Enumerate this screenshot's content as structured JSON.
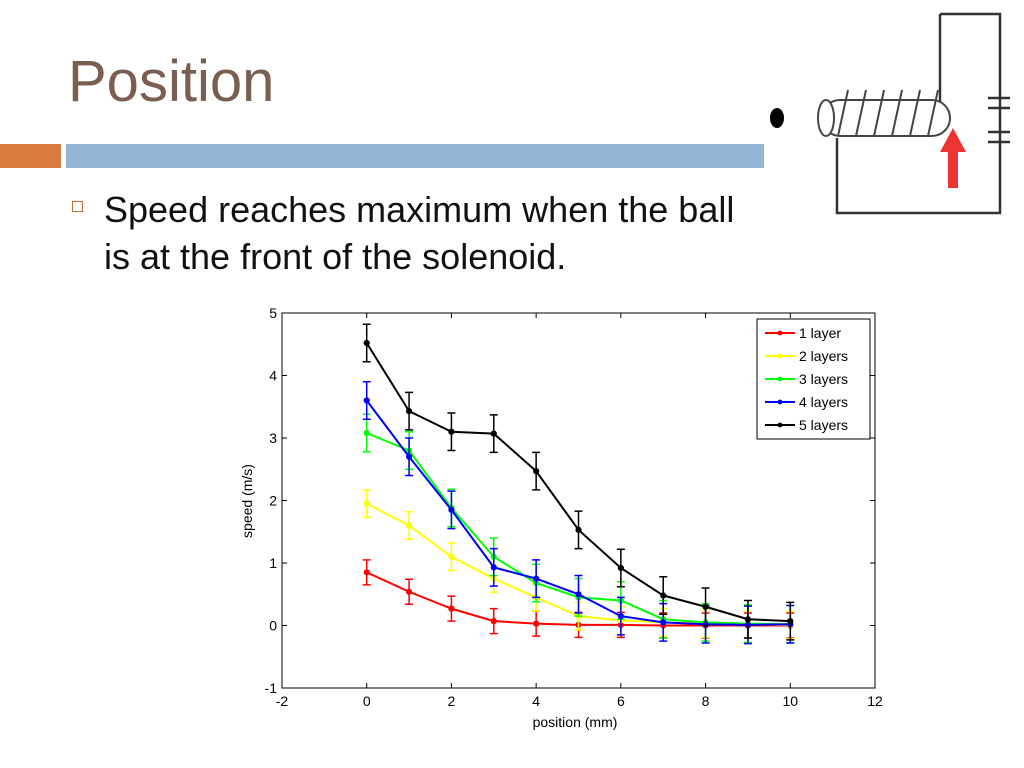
{
  "slide": {
    "title": "Position",
    "bullet": "Speed reaches maximum when the ball is at the front of the solenoid."
  },
  "colors": {
    "title": "#7a5e50",
    "accent_orange": "#d97b3c",
    "accent_blue": "#93b6d4",
    "arrow": "#ee3333"
  },
  "chart_data": {
    "type": "line",
    "title": "",
    "xlabel": "position (mm)",
    "ylabel": "speed (m/s)",
    "xlim": [
      -2,
      12
    ],
    "ylim": [
      -1,
      5
    ],
    "xticks": [
      -2,
      0,
      2,
      4,
      6,
      8,
      10,
      12
    ],
    "yticks": [
      -1,
      0,
      1,
      2,
      3,
      4,
      5
    ],
    "legend_position": "top-right",
    "grid": false,
    "x": [
      0,
      1,
      2,
      3,
      4,
      5,
      6,
      7,
      8,
      9,
      10
    ],
    "series": [
      {
        "name": "1 layer",
        "color": "#ff0000",
        "values": [
          0.85,
          0.54,
          0.27,
          0.07,
          0.03,
          0.01,
          0.01,
          0.0,
          0.0,
          0.0,
          0.0
        ],
        "errors": [
          0.2,
          0.2,
          0.2,
          0.2,
          0.2,
          0.2,
          0.2,
          0.2,
          0.2,
          0.2,
          0.2
        ]
      },
      {
        "name": "2 layers",
        "color": "#ffff00",
        "values": [
          1.95,
          1.6,
          1.1,
          0.75,
          0.45,
          0.15,
          0.08,
          0.05,
          0.03,
          0.02,
          0.01
        ],
        "errors": [
          0.22,
          0.22,
          0.22,
          0.22,
          0.22,
          0.22,
          0.22,
          0.22,
          0.22,
          0.22,
          0.22
        ]
      },
      {
        "name": "3 layers",
        "color": "#00ff00",
        "values": [
          3.08,
          2.8,
          1.88,
          1.1,
          0.68,
          0.45,
          0.4,
          0.1,
          0.05,
          0.03,
          0.02
        ],
        "errors": [
          0.3,
          0.3,
          0.3,
          0.3,
          0.3,
          0.3,
          0.3,
          0.3,
          0.3,
          0.3,
          0.3
        ]
      },
      {
        "name": "4 layers",
        "color": "#0000ff",
        "values": [
          3.6,
          2.7,
          1.85,
          0.93,
          0.75,
          0.5,
          0.15,
          0.05,
          0.02,
          0.01,
          0.02
        ],
        "errors": [
          0.3,
          0.3,
          0.3,
          0.3,
          0.3,
          0.3,
          0.3,
          0.3,
          0.3,
          0.3,
          0.3
        ]
      },
      {
        "name": "5 layers",
        "color": "#000000",
        "values": [
          4.52,
          3.43,
          3.1,
          3.07,
          2.47,
          1.53,
          0.92,
          0.48,
          0.3,
          0.1,
          0.07
        ],
        "errors": [
          0.3,
          0.3,
          0.3,
          0.3,
          0.3,
          0.3,
          0.3,
          0.3,
          0.3,
          0.3,
          0.3
        ]
      }
    ]
  }
}
